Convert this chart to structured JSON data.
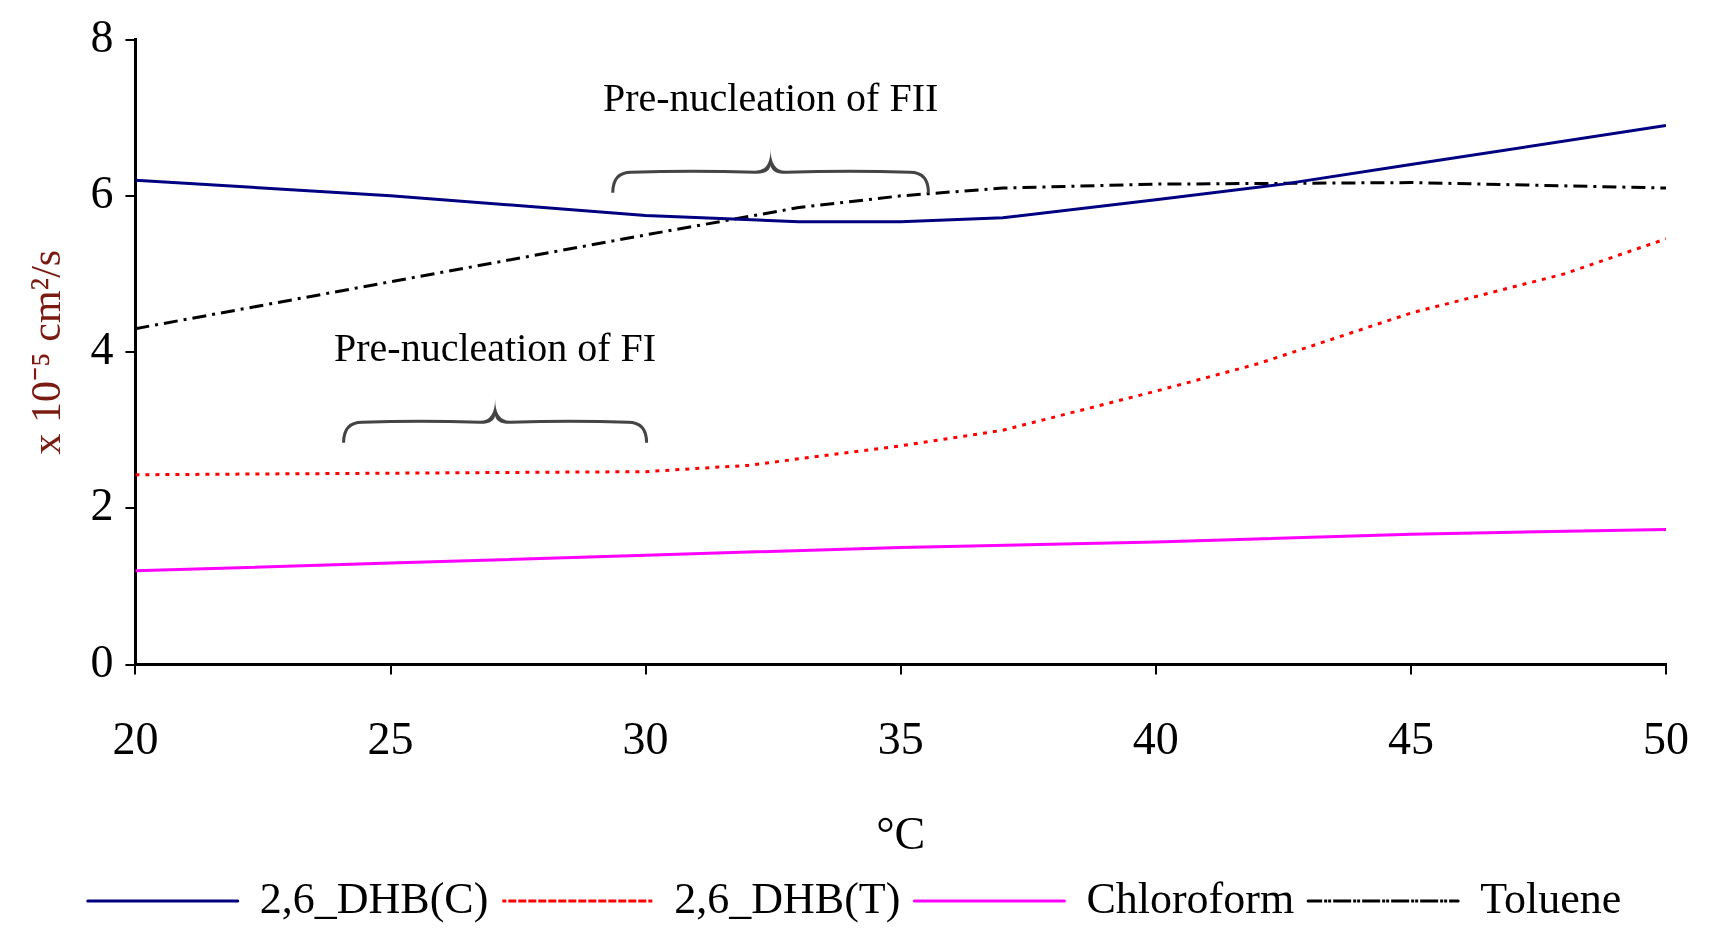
{
  "chart_data": {
    "type": "line",
    "xlabel": "°C",
    "ylabel": "x 10⁻⁵ cm²/s",
    "xlim": [
      20,
      50
    ],
    "xticks": [
      20,
      25,
      30,
      35,
      40,
      45,
      50
    ],
    "ylim": [
      0,
      8
    ],
    "yticks": [
      0,
      2,
      4,
      6,
      8
    ],
    "grid": false,
    "legend": "bottom",
    "marker": "none",
    "annotations": [
      "Pre-nucleation of FII",
      "Pre-nucleation of FI"
    ],
    "series": [
      {
        "name": "2,6_DHB(C)",
        "color": "#000080",
        "line_style": "solid",
        "x": [
          20,
          25,
          30,
          33,
          35,
          37,
          40,
          42.5,
          45,
          50
        ],
        "values": [
          6.2,
          6.0,
          5.75,
          5.67,
          5.67,
          5.72,
          5.95,
          6.15,
          6.4,
          6.9
        ]
      },
      {
        "name": "2,6_DHB(T)",
        "color": "#ff0000",
        "line_style": "dotted",
        "x": [
          20,
          25,
          30,
          32,
          35,
          37,
          40,
          42,
          45,
          48,
          50
        ],
        "values": [
          2.43,
          2.45,
          2.47,
          2.55,
          2.8,
          3.0,
          3.5,
          3.85,
          4.5,
          5.0,
          5.45
        ]
      },
      {
        "name": "Chloroform",
        "color": "#ff00ff",
        "line_style": "solid",
        "x": [
          20,
          25,
          30,
          35,
          40,
          45,
          50
        ],
        "values": [
          1.2,
          1.3,
          1.4,
          1.5,
          1.57,
          1.67,
          1.73
        ]
      },
      {
        "name": "Toluene",
        "color": "#000000",
        "line_style": "dashed",
        "x": [
          20,
          25,
          30,
          33,
          35,
          37,
          40,
          45,
          50
        ],
        "values": [
          4.3,
          4.9,
          5.5,
          5.85,
          6.0,
          6.1,
          6.15,
          6.17,
          6.1
        ]
      }
    ]
  }
}
